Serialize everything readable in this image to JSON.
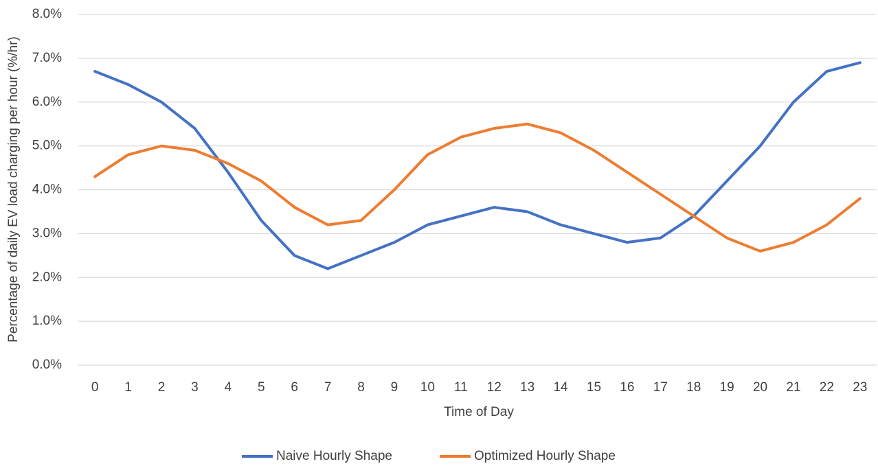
{
  "chart_data": {
    "type": "line",
    "x_label": "Time of Day",
    "y_label": "Percentage of daily EV load charging per hour (%/hr)",
    "categories": [
      "0",
      "1",
      "2",
      "3",
      "4",
      "5",
      "6",
      "7",
      "8",
      "9",
      "10",
      "11",
      "12",
      "13",
      "14",
      "15",
      "16",
      "17",
      "18",
      "19",
      "20",
      "21",
      "22",
      "23"
    ],
    "series": [
      {
        "name": "Naive Hourly Shape",
        "color": "#4472c4",
        "values": [
          6.7,
          6.4,
          6.0,
          5.4,
          4.4,
          3.3,
          2.5,
          2.2,
          2.5,
          2.8,
          3.2,
          3.4,
          3.6,
          3.5,
          3.2,
          3.0,
          2.8,
          2.9,
          3.4,
          4.2,
          5.0,
          6.0,
          6.7,
          6.9
        ]
      },
      {
        "name": "Optimized Hourly Shape",
        "color": "#ed7d31",
        "values": [
          4.3,
          4.8,
          5.0,
          4.9,
          4.6,
          4.2,
          3.6,
          3.2,
          3.3,
          4.0,
          4.8,
          5.2,
          5.4,
          5.5,
          5.3,
          4.9,
          4.4,
          3.9,
          3.4,
          2.9,
          2.6,
          2.8,
          3.2,
          3.8
        ]
      }
    ],
    "ylim": [
      0,
      8
    ],
    "yticks": [
      {
        "value": 0,
        "label": "0.0%"
      },
      {
        "value": 1,
        "label": "1.0%"
      },
      {
        "value": 2,
        "label": "2.0%"
      },
      {
        "value": 3,
        "label": "3.0%"
      },
      {
        "value": 4,
        "label": "4.0%"
      },
      {
        "value": 5,
        "label": "5.0%"
      },
      {
        "value": 6,
        "label": "6.0%"
      },
      {
        "value": 7,
        "label": "7.0%"
      },
      {
        "value": 8,
        "label": "8.0%"
      }
    ],
    "grid": true,
    "legend": "bottom"
  }
}
